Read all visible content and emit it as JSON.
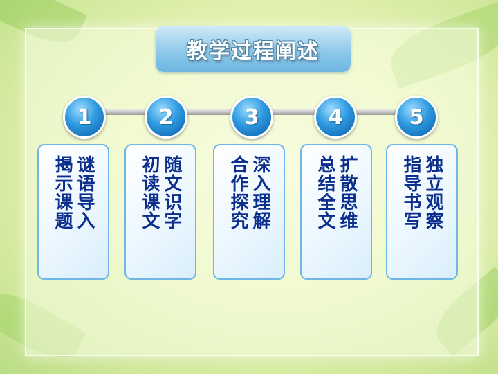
{
  "title": "教学过程阐述",
  "steps": [
    {
      "number": "1",
      "line1": "谜语导入",
      "line2": "揭示课题"
    },
    {
      "number": "2",
      "line1": "随文识字",
      "line2": "初读课文"
    },
    {
      "number": "3",
      "line1": "深入理解",
      "line2": "合作探究"
    },
    {
      "number": "4",
      "line1": "扩散思维",
      "line2": "总结全文"
    },
    {
      "number": "5",
      "line1": "独立观察",
      "line2": "指导书写"
    }
  ],
  "colors": {
    "title_bg": "#8fc9ea",
    "number_circle": "#2e9ae0",
    "card_text": "#0c2e8c",
    "card_border": "#6fb7e5"
  }
}
